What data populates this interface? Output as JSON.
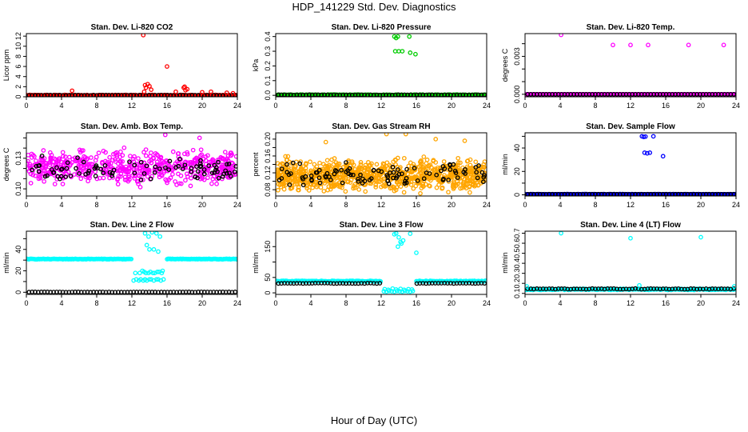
{
  "title": "HDP_141229  Std. Dev. Diagnostics",
  "xlabel": "Hour of Day (UTC)",
  "chart_data": [
    {
      "type": "scatter",
      "title": "Stan. Dev. Li-820 CO2",
      "ylabel": "Licor ppm",
      "xlim": [
        0,
        24
      ],
      "ylim": [
        0,
        12.5
      ],
      "xticks": [
        0,
        4,
        8,
        12,
        16,
        20,
        24
      ],
      "yticks": [
        0,
        2,
        4,
        6,
        8,
        10,
        12
      ],
      "ytick_labels": [
        "0",
        "2",
        "4",
        "6",
        "8",
        "10",
        "12"
      ],
      "baseline": {
        "value": 0.3,
        "color": "#ff0000",
        "secondary_value": 0.3,
        "secondary_color": "#000000",
        "spread": 0.15
      },
      "series": [
        {
          "name": "outliers",
          "color": "#ff0000",
          "x": [
            5.2,
            13.3,
            13.5,
            13.6,
            13.8,
            14.0,
            14.2,
            13.4,
            16.0,
            17.0,
            17.9,
            18.1,
            18.3,
            18.0,
            20.0,
            21.0,
            22.8,
            23.5
          ],
          "y": [
            1.2,
            12.2,
            2.3,
            1.8,
            2.5,
            2.1,
            1.4,
            1.0,
            6.0,
            1.0,
            1.8,
            1.3,
            1.5,
            2.0,
            0.9,
            1.0,
            0.8,
            0.7
          ]
        }
      ]
    },
    {
      "type": "scatter",
      "title": "Stan. Dev. Li-820 Pressure",
      "ylabel": "kPa",
      "xlim": [
        0,
        24
      ],
      "ylim": [
        -0.01,
        0.42
      ],
      "xticks": [
        0,
        4,
        8,
        12,
        16,
        20,
        24
      ],
      "yticks": [
        0.0,
        0.1,
        0.2,
        0.3,
        0.4
      ],
      "ytick_labels": [
        "0.0",
        "0.1",
        "0.2",
        "0.3",
        "0.4"
      ],
      "baseline": {
        "value": 0.003,
        "color": "#00cc00",
        "secondary_value": 0.003,
        "secondary_color": "#000000",
        "spread": 0.004
      },
      "series": [
        {
          "name": "outliers",
          "color": "#00cc00",
          "x": [
            13.5,
            13.7,
            13.9,
            13.6,
            14.0,
            14.4,
            15.2,
            15.3,
            15.9
          ],
          "y": [
            0.4,
            0.39,
            0.4,
            0.3,
            0.3,
            0.3,
            0.4,
            0.29,
            0.28
          ]
        }
      ]
    },
    {
      "type": "scatter",
      "title": "Stan. Dev. Li-820 Temp.",
      "ylabel": "degrees C",
      "xlim": [
        0,
        24
      ],
      "ylim": [
        -0.0002,
        0.0048
      ],
      "xticks": [
        0,
        4,
        8,
        12,
        16,
        20,
        24
      ],
      "yticks": [
        0.0,
        0.001,
        0.002,
        0.003,
        0.004
      ],
      "ytick_labels": [
        "0.000",
        "",
        "",
        "0.003",
        ""
      ],
      "baseline": {
        "value": 0.0,
        "color": "#ff00ff",
        "secondary_value": 0.0,
        "secondary_color": "#000000",
        "spread": 0.0
      },
      "series": [
        {
          "name": "outliers",
          "color": "#ff00ff",
          "x": [
            4.1,
            10.0,
            12.0,
            14.0,
            18.6,
            22.6
          ],
          "y": [
            0.0047,
            0.0039,
            0.0039,
            0.0039,
            0.0039,
            0.0039
          ]
        }
      ]
    },
    {
      "type": "scatter",
      "title": "Stan. Dev. Amb. Box Temp.",
      "ylabel": "degrees C",
      "xlim": [
        0,
        24
      ],
      "ylim": [
        0.093,
        0.155
      ],
      "xticks": [
        0,
        4,
        8,
        12,
        16,
        20,
        24
      ],
      "yticks": [
        0.1,
        0.11,
        0.12,
        0.13,
        0.14,
        0.15
      ],
      "ytick_labels": [
        "0.10",
        "",
        "",
        "0.13",
        "",
        ""
      ],
      "cloud": {
        "color": "#ff00ff",
        "center": 0.121,
        "spread": 0.016,
        "count": 560
      },
      "cloud_secondary": {
        "color": "#000000",
        "center": 0.12,
        "spread": 0.01,
        "count": 90
      },
      "series": [
        {
          "name": "outliers",
          "color": "#ff00ff",
          "x": [
            15.8,
            19.7
          ],
          "y": [
            0.153,
            0.15
          ]
        }
      ]
    },
    {
      "type": "scatter",
      "title": "Stan. Dev. Gas Stream RH",
      "ylabel": "percent",
      "xlim": [
        0,
        24
      ],
      "ylim": [
        0.065,
        0.215
      ],
      "xticks": [
        0,
        4,
        8,
        12,
        16,
        20,
        24
      ],
      "yticks": [
        0.08,
        0.1,
        0.12,
        0.14,
        0.16,
        0.18,
        0.2
      ],
      "ytick_labels": [
        "0.08",
        "",
        "0.12",
        "",
        "0.16",
        "",
        "0.20"
      ],
      "cloud": {
        "color": "#ffa500",
        "center": 0.115,
        "spread": 0.035,
        "count": 900
      },
      "cloud_secondary": {
        "color": "#000000",
        "center": 0.116,
        "spread": 0.022,
        "count": 100
      },
      "series": [
        {
          "name": "outliers",
          "color": "#ffa500",
          "x": [
            12.6,
            14.8,
            18.2,
            5.7,
            21.5
          ],
          "y": [
            0.212,
            0.212,
            0.2,
            0.193,
            0.196
          ]
        }
      ]
    },
    {
      "type": "scatter",
      "title": "Stan. Dev. Sample Flow",
      "ylabel": "ml/min",
      "xlim": [
        0,
        24
      ],
      "ylim": [
        -1,
        53
      ],
      "xticks": [
        0,
        4,
        8,
        12,
        16,
        20,
        24
      ],
      "yticks": [
        0,
        10,
        20,
        30,
        40,
        50
      ],
      "ytick_labels": [
        "0",
        "",
        "20",
        "",
        "40",
        ""
      ],
      "baseline": {
        "value": 0.5,
        "color": "#0000ff",
        "secondary_value": 0.5,
        "secondary_color": "#000000",
        "spread": 0.3
      },
      "series": [
        {
          "name": "outliers",
          "color": "#0000ff",
          "x": [
            13.3,
            13.5,
            13.7,
            13.6,
            13.9,
            14.2,
            14.6,
            15.7
          ],
          "y": [
            50,
            49.5,
            49.8,
            36,
            35.5,
            36,
            50,
            33
          ]
        }
      ]
    },
    {
      "type": "scatter",
      "title": "Stan. Dev. Line 2 Flow",
      "ylabel": "ml/min",
      "xlim": [
        0,
        24
      ],
      "ylim": [
        -2,
        57
      ],
      "xticks": [
        0,
        4,
        8,
        12,
        16,
        20,
        24
      ],
      "yticks": [
        0,
        10,
        20,
        30,
        40,
        50
      ],
      "ytick_labels": [
        "0",
        "",
        "20",
        "",
        "40",
        ""
      ],
      "baseline": {
        "value": 31,
        "color": "#00ffff",
        "secondary_value": 0.2,
        "secondary_color": "#000000",
        "spread": 0.5
      },
      "gap": [
        12.0,
        15.9
      ],
      "series": [
        {
          "name": "outliers",
          "color": "#00ffff",
          "x": [
            12.2,
            12.5,
            12.8,
            13.0,
            13.3,
            13.5,
            13.7,
            14.0,
            14.2,
            14.5,
            14.8,
            15.0,
            15.3,
            15.6,
            12.4,
            12.9,
            13.4,
            13.9,
            14.4,
            14.9,
            15.4,
            13.2,
            13.6,
            14.1,
            14.6,
            15.1,
            15.5,
            13.5,
            13.9,
            14.3,
            14.8,
            15.2,
            13.7,
            14.0,
            14.5,
            15.0
          ],
          "y": [
            11,
            12,
            11,
            12,
            11,
            12,
            11,
            12,
            12,
            11,
            12,
            12,
            11,
            12,
            18,
            18,
            19,
            18,
            18,
            19,
            18,
            20,
            18,
            19,
            18,
            19,
            20,
            55,
            52,
            56,
            55,
            52,
            44,
            40,
            40,
            38
          ]
        }
      ]
    },
    {
      "type": "scatter",
      "title": "Stan. Dev. Line 3 Flow",
      "ylabel": "ml/min",
      "xlim": [
        0,
        24
      ],
      "ylim": [
        -5,
        200
      ],
      "xticks": [
        0,
        4,
        8,
        12,
        16,
        20,
        24
      ],
      "yticks": [
        0,
        50,
        100,
        150
      ],
      "ytick_labels": [
        "0",
        "50",
        "",
        "150"
      ],
      "baseline": {
        "value": 38,
        "color": "#00ffff",
        "secondary_value": 31,
        "secondary_color": "#000000",
        "spread": 2.5
      },
      "gap": [
        12.0,
        15.9
      ],
      "series": [
        {
          "name": "outliers",
          "color": "#00ffff",
          "x": [
            13.5,
            13.7,
            14.0,
            14.2,
            14.5,
            13.9,
            14.3,
            15.3,
            16.0,
            12.3,
            12.6,
            12.9,
            13.2,
            13.5,
            13.8,
            14.1,
            14.4,
            14.7,
            15.0,
            15.3,
            15.6,
            12.4,
            12.8,
            13.3,
            13.7,
            14.2,
            14.6,
            15.1,
            15.5
          ],
          "y": [
            190,
            193,
            180,
            165,
            170,
            150,
            160,
            192,
            130,
            5,
            4,
            6,
            5,
            4,
            6,
            5,
            4,
            6,
            5,
            4,
            6,
            12,
            10,
            14,
            11,
            13,
            10,
            12,
            11
          ]
        }
      ]
    },
    {
      "type": "scatter",
      "title": "Stan. Dev. Line 4 (LT) Flow",
      "ylabel": "ml/min",
      "xlim": [
        0,
        24
      ],
      "ylim": [
        0.09,
        0.72
      ],
      "xticks": [
        0,
        4,
        8,
        12,
        16,
        20,
        24
      ],
      "yticks": [
        0.1,
        0.2,
        0.3,
        0.4,
        0.5,
        0.6,
        0.7
      ],
      "ytick_labels": [
        "0.1",
        "0.2",
        "0.3",
        "0.4",
        "0.5",
        "0.6",
        "0.7"
      ],
      "baseline": {
        "value": 0.14,
        "color": "#00ffff",
        "secondary_value": 0.145,
        "secondary_color": "#000000",
        "spread": 0.012
      },
      "series": [
        {
          "name": "outliers",
          "color": "#00ffff",
          "x": [
            4.1,
            12.0,
            20.0,
            0.2,
            13.0,
            23.8
          ],
          "y": [
            0.7,
            0.65,
            0.66,
            0.17,
            0.18,
            0.17
          ]
        }
      ]
    }
  ]
}
